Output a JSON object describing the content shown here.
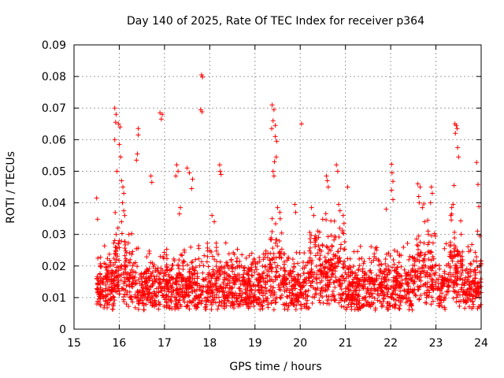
{
  "chart_data": {
    "type": "scatter",
    "title": "Day 140 of 2025, Rate Of TEC Index for receiver p364",
    "xlabel": "GPS time / hours",
    "ylabel": "ROTI / TECUs",
    "xlim": [
      15,
      24
    ],
    "ylim": [
      0,
      0.09
    ],
    "x_ticks": [
      15,
      16,
      17,
      18,
      19,
      20,
      21,
      22,
      23,
      24
    ],
    "x_tick_labels": [
      "15",
      "16",
      "17",
      "18",
      "19",
      "20",
      "21",
      "22",
      "23",
      "24"
    ],
    "y_ticks": [
      0,
      0.01,
      0.02,
      0.03,
      0.04,
      0.05,
      0.06,
      0.07,
      0.08,
      0.09
    ],
    "y_tick_labels": [
      "0",
      "0.01",
      "0.02",
      "0.03",
      "0.04",
      "0.05",
      "0.06",
      "0.07",
      "0.08",
      "0.09"
    ],
    "grid": true,
    "marker": "+",
    "marker_color": "#ff0000",
    "series": [
      {
        "name": "ROTI",
        "points": [
          [
            15.5,
            0.0415
          ],
          [
            15.52,
            0.0348
          ],
          [
            15.9,
            0.07
          ],
          [
            15.93,
            0.068
          ],
          [
            15.92,
            0.0655
          ],
          [
            15.98,
            0.065
          ],
          [
            16.02,
            0.064
          ],
          [
            15.9,
            0.06
          ],
          [
            16.0,
            0.0585
          ],
          [
            16.03,
            0.0545
          ],
          [
            15.95,
            0.05
          ],
          [
            16.05,
            0.047
          ],
          [
            16.08,
            0.045
          ],
          [
            16.1,
            0.043
          ],
          [
            16.07,
            0.04
          ],
          [
            16.1,
            0.0375
          ],
          [
            16.12,
            0.036
          ],
          [
            16.05,
            0.034
          ],
          [
            15.97,
            0.032
          ],
          [
            15.93,
            0.03
          ],
          [
            16.0,
            0.028
          ],
          [
            15.98,
            0.027
          ],
          [
            16.42,
            0.0635
          ],
          [
            16.42,
            0.0615
          ],
          [
            16.4,
            0.0555
          ],
          [
            16.38,
            0.0535
          ],
          [
            16.9,
            0.0685
          ],
          [
            16.93,
            0.0665
          ],
          [
            16.95,
            0.068
          ],
          [
            16.7,
            0.0485
          ],
          [
            16.72,
            0.0465
          ],
          [
            17.27,
            0.052
          ],
          [
            17.3,
            0.05
          ],
          [
            17.25,
            0.0485
          ],
          [
            17.5,
            0.051
          ],
          [
            17.55,
            0.0495
          ],
          [
            17.62,
            0.0475
          ],
          [
            17.6,
            0.0445
          ],
          [
            17.35,
            0.0385
          ],
          [
            17.33,
            0.0365
          ],
          [
            17.82,
            0.0805
          ],
          [
            17.84,
            0.0798
          ],
          [
            17.8,
            0.0695
          ],
          [
            17.83,
            0.0688
          ],
          [
            18.22,
            0.052
          ],
          [
            18.23,
            0.05
          ],
          [
            18.25,
            0.049
          ],
          [
            18.05,
            0.036
          ],
          [
            18.1,
            0.034
          ],
          [
            19.38,
            0.071
          ],
          [
            19.42,
            0.0695
          ],
          [
            19.4,
            0.066
          ],
          [
            19.45,
            0.0645
          ],
          [
            19.37,
            0.0635
          ],
          [
            19.45,
            0.061
          ],
          [
            19.48,
            0.0595
          ],
          [
            19.47,
            0.0545
          ],
          [
            19.43,
            0.053
          ],
          [
            19.4,
            0.05
          ],
          [
            19.42,
            0.0485
          ],
          [
            19.5,
            0.0385
          ],
          [
            19.55,
            0.037
          ],
          [
            19.38,
            0.035
          ],
          [
            20.03,
            0.065
          ],
          [
            19.88,
            0.0395
          ],
          [
            19.9,
            0.037
          ],
          [
            20.25,
            0.0385
          ],
          [
            20.3,
            0.036
          ],
          [
            20.58,
            0.0485
          ],
          [
            20.6,
            0.047
          ],
          [
            20.62,
            0.045
          ],
          [
            20.8,
            0.052
          ],
          [
            20.83,
            0.05
          ],
          [
            20.85,
            0.0395
          ],
          [
            20.88,
            0.0375
          ],
          [
            21.05,
            0.045
          ],
          [
            20.95,
            0.036
          ],
          [
            22.02,
            0.0522
          ],
          [
            22.03,
            0.0495
          ],
          [
            22.05,
            0.0468
          ],
          [
            22.02,
            0.044
          ],
          [
            22.05,
            0.041
          ],
          [
            21.9,
            0.038
          ],
          [
            22.6,
            0.046
          ],
          [
            22.65,
            0.045
          ],
          [
            22.62,
            0.042
          ],
          [
            22.63,
            0.04
          ],
          [
            22.7,
            0.0385
          ],
          [
            22.9,
            0.045
          ],
          [
            22.92,
            0.043
          ],
          [
            22.88,
            0.04
          ],
          [
            22.75,
            0.034
          ],
          [
            23.42,
            0.065
          ],
          [
            23.45,
            0.0645
          ],
          [
            23.47,
            0.0635
          ],
          [
            23.43,
            0.062
          ],
          [
            23.48,
            0.0575
          ],
          [
            23.5,
            0.0545
          ],
          [
            23.4,
            0.0455
          ],
          [
            23.38,
            0.0395
          ],
          [
            23.35,
            0.0385
          ],
          [
            23.33,
            0.036
          ],
          [
            23.9,
            0.0528
          ],
          [
            23.93,
            0.0458
          ],
          [
            23.95,
            0.0388
          ],
          [
            23.92,
            0.031
          ],
          [
            23.97,
            0.0295
          ]
        ]
      }
    ]
  }
}
